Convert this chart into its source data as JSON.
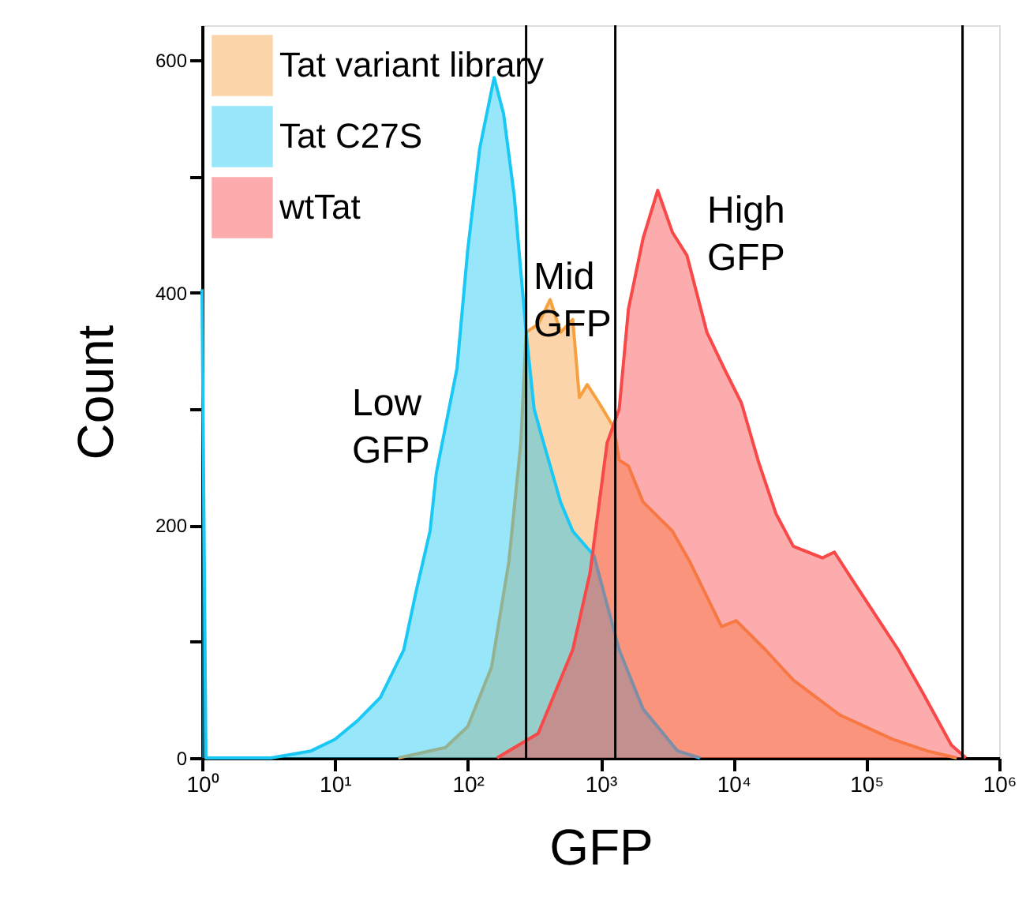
{
  "chart_data": {
    "type": "area",
    "xlabel": "GFP",
    "ylabel": "Count",
    "log": "x",
    "grid": false,
    "legend": "top left",
    "xlim": [
      1,
      1000000
    ],
    "xticks": [
      {
        "value": 1,
        "label": "10⁰"
      },
      {
        "value": 10,
        "label": "10¹"
      },
      {
        "value": 100,
        "label": "10²"
      },
      {
        "value": 1000,
        "label": "10³"
      },
      {
        "value": 10000,
        "label": "10⁴"
      },
      {
        "value": 100000,
        "label": "10⁵"
      },
      {
        "value": 1000000,
        "label": "10⁶"
      }
    ],
    "ylim": [
      0,
      630
    ],
    "yticks": [
      0,
      {
        "value": 100,
        "label": null
      },
      200,
      {
        "value": 300,
        "label": null
      },
      400,
      {
        "value": 500,
        "label": null
      },
      600
    ],
    "series": [
      {
        "name": "Tat variant library",
        "color": "#f7a040",
        "x": [
          30,
          68,
          100,
          151,
          204,
          251,
          275,
          339,
          417,
          501,
          617,
          692,
          794,
          977,
          1260,
          1380,
          1620,
          2090,
          3470,
          4680,
          8130,
          10500,
          17400,
          28200,
          63100,
          158000,
          288000,
          479000
        ],
        "values": [
          0,
          9,
          27,
          78,
          169,
          271,
          366,
          373,
          394,
          366,
          377,
          310,
          321,
          305,
          284,
          256,
          251,
          220,
          195,
          169,
          113,
          118,
          93,
          67,
          37,
          16,
          6,
          0
        ]
      },
      {
        "name": "Tat C27S",
        "color": "#1ac8f5",
        "x": [
          1,
          1.07,
          3.3,
          6.6,
          10,
          14.8,
          22,
          33,
          41,
          52,
          58,
          83,
          100,
          123,
          158,
          186,
          224,
          275,
          316,
          372,
          500,
          617,
          891,
          1380,
          2090,
          3800,
          5600
        ],
        "values": [
          403,
          0,
          0,
          6,
          16,
          32,
          52,
          93,
          144,
          195,
          245,
          335,
          437,
          524,
          585,
          554,
          483,
          366,
          300,
          271,
          220,
          195,
          174,
          93,
          42,
          6,
          0
        ]
      },
      {
        "name": "wtTat",
        "color": "#f84848",
        "x": [
          166,
          339,
          617,
          832,
          1120,
          1380,
          1620,
          2090,
          2690,
          3470,
          4470,
          6310,
          8510,
          11500,
          15500,
          20900,
          28200,
          46800,
          57500,
          77600,
          117000,
          174000,
          263000,
          437000,
          562000
        ],
        "values": [
          0,
          21,
          93,
          159,
          271,
          300,
          386,
          447,
          488,
          452,
          432,
          366,
          335,
          305,
          254,
          210,
          182,
          172,
          177,
          154,
          123,
          93,
          57,
          11,
          0
        ]
      }
    ],
    "ref_lines": [
      {
        "axis": "x",
        "value": 275,
        "label": null
      },
      {
        "axis": "x",
        "value": 1290,
        "label": null
      },
      {
        "axis": "x",
        "value": 530000,
        "label": null
      }
    ],
    "annotations": [
      "Low GFP",
      "Mid GFP",
      "High GFP"
    ]
  }
}
